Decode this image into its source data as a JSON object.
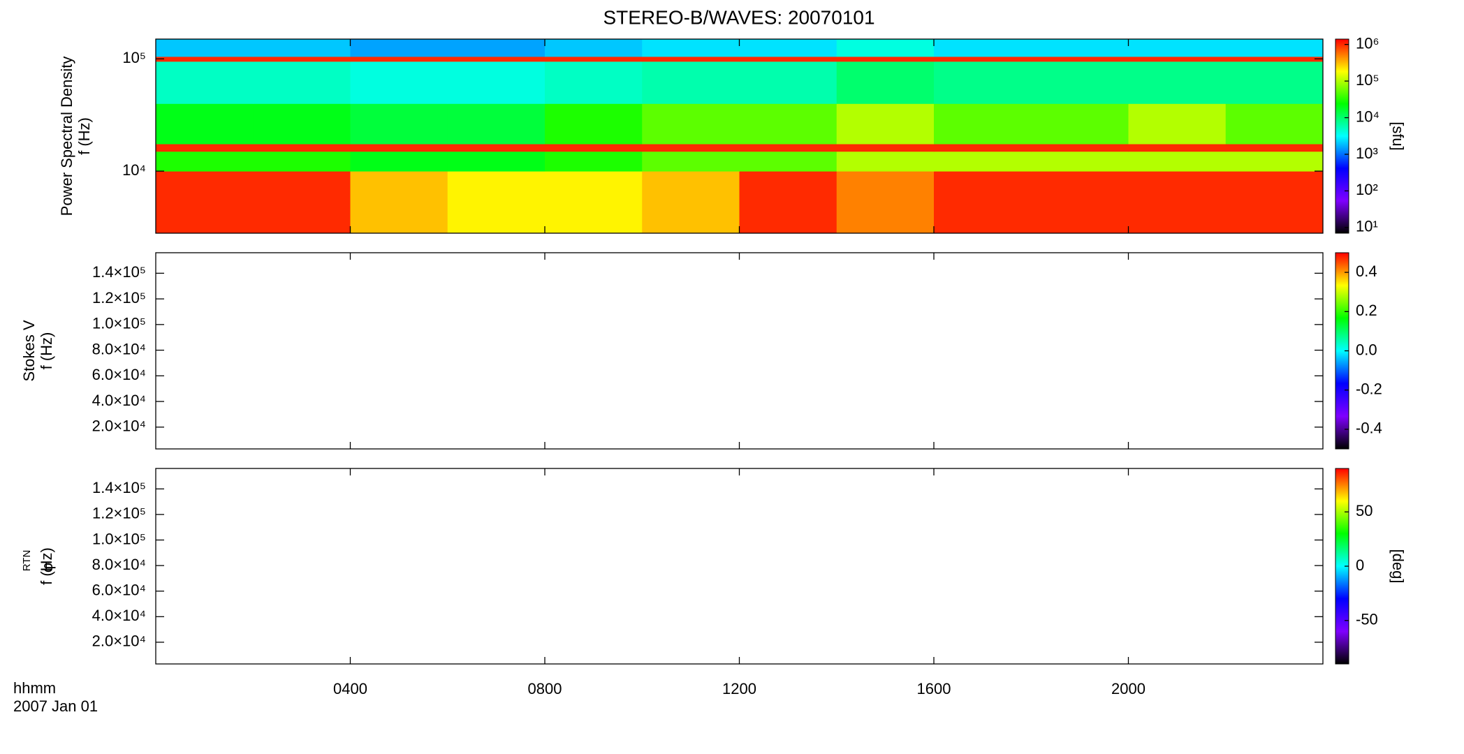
{
  "title": "STEREO-B/WAVES: 20070101",
  "chart_data": [
    {
      "type": "heatmap",
      "ylabel": [
        "Power Spectral Density",
        "f (Hz)"
      ],
      "ylog": true,
      "xlim": [
        0,
        24
      ],
      "xticks": [
        {
          "value": 4,
          "label": "0400"
        },
        {
          "value": 8,
          "label": "0800"
        },
        {
          "value": 12,
          "label": "1200"
        },
        {
          "value": 16,
          "label": "1600"
        },
        {
          "value": 20,
          "label": "2000"
        }
      ],
      "ylim": [
        2800,
        150000
      ],
      "yticks": [
        {
          "value": 10000,
          "label": "10⁴"
        },
        {
          "value": 100000,
          "label": "10⁵"
        }
      ],
      "x": [
        0,
        2,
        4,
        6,
        8,
        10,
        12,
        14,
        16,
        18,
        20,
        22,
        24
      ],
      "y": [
        2800,
        10000,
        15000,
        17500,
        40000,
        95000,
        105000,
        150000
      ],
      "values": [
        [
          1000000,
          1000000,
          300000,
          200000,
          200000,
          300000,
          1000000,
          500000,
          1000000,
          1000000,
          1000000,
          1000000
        ],
        [
          30000,
          30000,
          20000,
          20000,
          30000,
          50000,
          50000,
          100000,
          100000,
          100000,
          100000,
          100000
        ],
        [
          1000000,
          1000000,
          1000000,
          1000000,
          1000000,
          1000000,
          1000000,
          1000000,
          1000000,
          1000000,
          1000000,
          1000000
        ],
        [
          20000,
          20000,
          15000,
          15000,
          30000,
          50000,
          50000,
          100000,
          50000,
          50000,
          100000,
          50000
        ],
        [
          5000,
          5000,
          4000,
          4000,
          5000,
          6000,
          6000,
          10000,
          8000,
          8000,
          8000,
          8000
        ],
        [
          1000000,
          1000000,
          1000000,
          1000000,
          1000000,
          1000000,
          1000000,
          1000000,
          1000000,
          1000000,
          1000000,
          1000000
        ],
        [
          2000,
          2000,
          1500,
          1500,
          2000,
          2500,
          2500,
          4000,
          2500,
          2500,
          2500,
          2500
        ]
      ],
      "clog": true,
      "clim": [
        7,
        1400000
      ],
      "cticks": [
        {
          "value": 10,
          "label": "10¹"
        },
        {
          "value": 100,
          "label": "10²"
        },
        {
          "value": 1000,
          "label": "10³"
        },
        {
          "value": 10000,
          "label": "10⁴"
        },
        {
          "value": 100000,
          "label": "10⁵"
        },
        {
          "value": 1000000,
          "label": "10⁶"
        }
      ],
      "clabel": "[sfu]",
      "colormap": [
        "#000000",
        "#7f00ff",
        "#0000ff",
        "#00ffff",
        "#00ff00",
        "#ffff00",
        "#ff0000"
      ]
    },
    {
      "type": "heatmap",
      "ylabel": [
        "Stokes V",
        "f (Hz)"
      ],
      "ylog": false,
      "xlim": [
        0,
        24
      ],
      "xticks": [
        {
          "value": 4,
          "label": "0400"
        },
        {
          "value": 8,
          "label": "0800"
        },
        {
          "value": 12,
          "label": "1200"
        },
        {
          "value": 16,
          "label": "1600"
        },
        {
          "value": 20,
          "label": "2000"
        }
      ],
      "ylim": [
        3000,
        156000
      ],
      "yticks": [
        {
          "value": 20000,
          "label": "2.0×10⁴"
        },
        {
          "value": 40000,
          "label": "4.0×10⁴"
        },
        {
          "value": 60000,
          "label": "6.0×10⁴"
        },
        {
          "value": 80000,
          "label": "8.0×10⁴"
        },
        {
          "value": 100000,
          "label": "1.0×10⁵"
        },
        {
          "value": 120000,
          "label": "1.2×10⁵"
        },
        {
          "value": 140000,
          "label": "1.4×10⁵"
        }
      ],
      "clog": false,
      "clim": [
        -0.5,
        0.5
      ],
      "cticks": [
        -0.4,
        -0.2,
        {
          "value": 0,
          "label": "0.0"
        },
        0.2,
        0.4
      ],
      "colormap": [
        "#000000",
        "#7f00ff",
        "#0000ff",
        "#00ffff",
        "#00ff00",
        "#ffff00",
        "#ff0000"
      ]
    },
    {
      "type": "heatmap",
      "ylabel": [
        "f (Hz)"
      ],
      "ylabel_symbol": "φ",
      "ylabel_subscript": "RTN",
      "ylog": false,
      "xlim": [
        0,
        24
      ],
      "xticks": [
        {
          "value": 4,
          "label": "0400"
        },
        {
          "value": 8,
          "label": "0800"
        },
        {
          "value": 12,
          "label": "1200"
        },
        {
          "value": 16,
          "label": "1600"
        },
        {
          "value": 20,
          "label": "2000"
        }
      ],
      "ylim": [
        3000,
        156000
      ],
      "yticks": [
        {
          "value": 20000,
          "label": "2.0×10⁴"
        },
        {
          "value": 40000,
          "label": "4.0×10⁴"
        },
        {
          "value": 60000,
          "label": "6.0×10⁴"
        },
        {
          "value": 80000,
          "label": "8.0×10⁴"
        },
        {
          "value": 100000,
          "label": "1.0×10⁵"
        },
        {
          "value": 120000,
          "label": "1.2×10⁵"
        },
        {
          "value": 140000,
          "label": "1.4×10⁵"
        }
      ],
      "clog": false,
      "clim": [
        -90,
        90
      ],
      "cticks": [
        -50,
        0,
        50
      ],
      "clabel": "[deg]",
      "colormap": [
        "#000000",
        "#7f00ff",
        "#0000ff",
        "#00ffff",
        "#00ff00",
        "#ffff00",
        "#ff0000"
      ]
    }
  ],
  "xlabel": [
    "hhmm",
    "2007 Jan 01"
  ]
}
